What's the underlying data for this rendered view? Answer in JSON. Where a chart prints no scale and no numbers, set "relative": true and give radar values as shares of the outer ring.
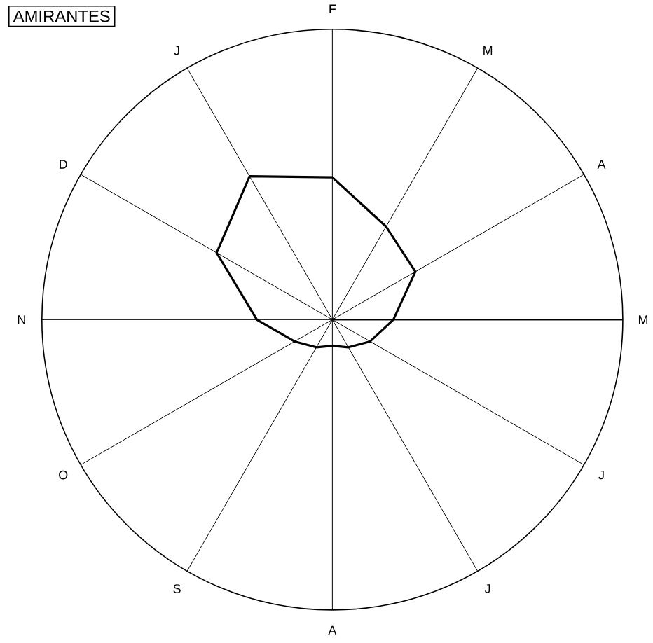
{
  "chart_data": {
    "type": "radar",
    "title": "AMIRANTES",
    "relative": true,
    "categories": [
      "F",
      "M",
      "A",
      "M",
      "J",
      "J",
      "A",
      "S",
      "O",
      "N",
      "D",
      "J"
    ],
    "series": [
      {
        "color": "#000000",
        "values": [
          0.49,
          0.37,
          0.33,
          0.21,
          0.15,
          0.11,
          0.09,
          0.11,
          0.15,
          0.26,
          0.46,
          0.57
        ]
      }
    ]
  }
}
